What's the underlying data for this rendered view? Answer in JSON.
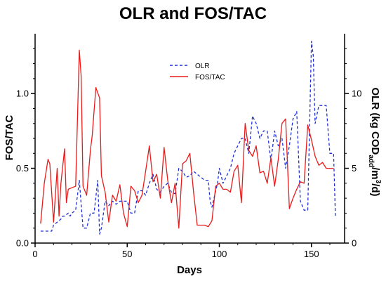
{
  "colors": {
    "olr": "#1f2fd6",
    "fos_tac": "#e81b1b",
    "axis": "#000000"
  },
  "chart_data": {
    "type": "line",
    "title": "OLR and FOS/TAC",
    "xlabel": "Days",
    "ylabel_left": "FOS/TAC",
    "ylabel_right": {
      "main": "OLR (kg COD",
      "sub": "add",
      "mid": "/m",
      "sup": "3",
      "end": "/d)"
    },
    "xlim": [
      0,
      168
    ],
    "ylim_left": [
      0,
      1.4
    ],
    "ylim_right": [
      0,
      14
    ],
    "x_ticks": [
      0,
      50,
      100,
      150
    ],
    "y_ticks_left": [
      0.0,
      0.5,
      1.0
    ],
    "y_ticks_left_labels": [
      "0.0",
      "0.5",
      "1.0"
    ],
    "y_ticks_right": [
      0,
      5,
      10
    ],
    "y_ticks_right_labels": [
      "0",
      "5",
      "10"
    ],
    "grid": false,
    "legend_position": "top-center",
    "series": [
      {
        "name": "OLR",
        "axis": "right",
        "style": "dashed",
        "x": [
          3,
          5,
          7,
          9,
          10,
          12,
          14,
          15,
          16,
          18,
          19,
          20,
          22,
          24,
          26,
          28,
          30,
          32,
          34,
          35,
          36,
          38,
          40,
          42,
          44,
          46,
          48,
          50,
          52,
          54,
          56,
          58,
          60,
          62,
          64,
          66,
          68,
          70,
          72,
          74,
          76,
          78,
          80,
          82,
          84,
          86,
          88,
          90,
          92,
          94,
          95,
          96,
          98,
          99,
          100,
          102,
          104,
          106,
          108,
          110,
          112,
          114,
          116,
          118,
          120,
          122,
          124,
          126,
          128,
          130,
          132,
          134,
          136,
          138,
          140,
          142,
          144,
          146,
          148,
          150,
          151,
          152,
          154,
          156,
          158,
          160,
          162,
          163
        ],
        "y": [
          0.8,
          0.8,
          0.8,
          0.8,
          1.2,
          1.4,
          1.6,
          1.8,
          1.8,
          2.0,
          1.8,
          2.0,
          2.2,
          4.2,
          1.0,
          1.0,
          2.0,
          2.0,
          4.2,
          0.6,
          1.0,
          2.8,
          2.5,
          2.8,
          2.6,
          2.8,
          2.8,
          2.8,
          2.0,
          2.0,
          3.5,
          3.5,
          3.2,
          4.0,
          4.6,
          3.6,
          3.4,
          3.8,
          4.0,
          3.4,
          3.3,
          5.0,
          4.8,
          4.4,
          4.5,
          4.8,
          4.6,
          4.4,
          4.2,
          4.2,
          2.8,
          2.4,
          3.5,
          4.0,
          5.0,
          4.0,
          4.5,
          5.0,
          6.0,
          6.5,
          7.0,
          7.0,
          6.0,
          8.5,
          8.0,
          7.0,
          7.5,
          7.5,
          5.5,
          7.5,
          6.5,
          7.0,
          5.0,
          6.5,
          8.3,
          8.8,
          2.8,
          2.2,
          2.2,
          13.5,
          12.5,
          8.0,
          9.2,
          9.2,
          9.2,
          6.0,
          6.0,
          1.8
        ]
      },
      {
        "name": "FOS/TAC",
        "axis": "left",
        "style": "solid",
        "x": [
          3,
          5,
          7,
          8,
          10,
          12,
          13,
          14,
          16,
          17,
          18,
          20,
          22,
          24,
          25,
          26,
          28,
          30,
          31,
          33,
          35,
          36,
          38,
          40,
          42,
          44,
          46,
          48,
          50,
          52,
          54,
          56,
          58,
          60,
          62,
          64,
          66,
          68,
          70,
          72,
          74,
          76,
          78,
          80,
          82,
          84,
          86,
          88,
          90,
          92,
          94,
          96,
          98,
          100,
          102,
          104,
          106,
          108,
          110,
          112,
          114,
          116,
          118,
          120,
          122,
          124,
          126,
          128,
          130,
          132,
          134,
          136,
          138,
          140,
          142,
          144,
          146,
          148,
          150,
          152,
          154,
          156,
          158,
          160,
          162
        ],
        "y": [
          0.13,
          0.4,
          0.56,
          0.53,
          0.14,
          0.5,
          0.18,
          0.4,
          0.63,
          0.27,
          0.36,
          0.37,
          0.38,
          1.29,
          1.12,
          0.38,
          0.32,
          0.62,
          0.72,
          1.04,
          0.97,
          0.45,
          0.34,
          0.14,
          0.32,
          0.28,
          0.39,
          0.2,
          0.11,
          0.38,
          0.35,
          0.27,
          0.32,
          0.48,
          0.65,
          0.41,
          0.46,
          0.3,
          0.64,
          0.42,
          0.27,
          0.4,
          0.1,
          0.53,
          0.55,
          0.6,
          0.34,
          0.12,
          0.12,
          0.12,
          0.11,
          0.15,
          0.38,
          0.4,
          0.36,
          0.36,
          0.34,
          0.48,
          0.52,
          0.27,
          0.8,
          0.62,
          0.58,
          0.65,
          0.47,
          0.48,
          0.4,
          0.57,
          0.38,
          0.56,
          0.8,
          0.83,
          0.23,
          0.3,
          0.36,
          0.41,
          0.4,
          0.79,
          0.69,
          0.58,
          0.52,
          0.54,
          0.5,
          0.5,
          0.5
        ]
      }
    ]
  }
}
